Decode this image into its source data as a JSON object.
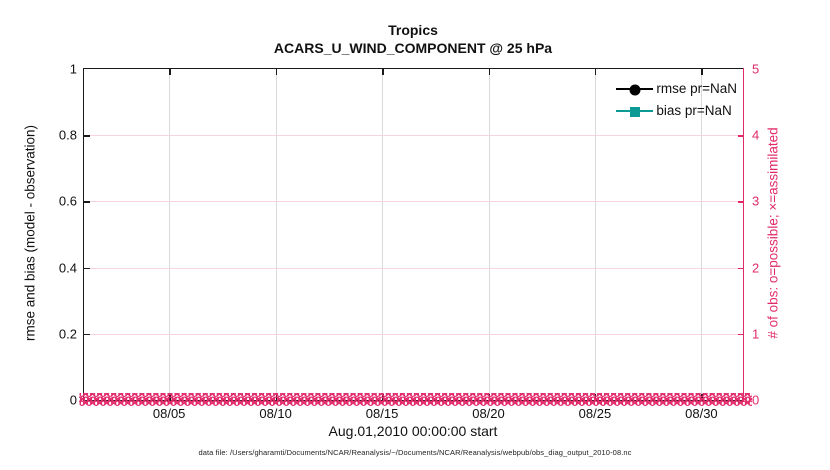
{
  "titles": {
    "line1": "Tropics",
    "line2": "ACARS_U_WIND_COMPONENT @ 25 hPa"
  },
  "axes": {
    "left": {
      "label": "rmse and bias (model - observation)",
      "ticks": [
        "0",
        "0.2",
        "0.4",
        "0.6",
        "0.8",
        "1"
      ],
      "range": [
        0,
        1
      ],
      "color": "#1a1a1a"
    },
    "right": {
      "label": "# of obs: o=possible; ×=assimilated",
      "ticks": [
        "0",
        "1",
        "2",
        "3",
        "4",
        "5"
      ],
      "range": [
        0,
        5
      ],
      "color": "#e22a6a"
    },
    "x": {
      "label": "Aug.01,2010 00:00:00 start",
      "ticks": [
        "08/05",
        "08/10",
        "08/15",
        "08/20",
        "08/25",
        "08/30"
      ],
      "range_days": 31
    }
  },
  "legend": [
    {
      "label": "rmse pr=NaN",
      "color": "#000000",
      "marker": "circle"
    },
    {
      "label": "bias pr=NaN",
      "color": "#0b9a94",
      "marker": "square"
    }
  ],
  "caption": "data file: /Users/gharamti/Documents/NCAR/Reanalysis/~/Documents/NCAR/Reanalysis/webpub/obs_diag_output_2010-08.nc",
  "colors": {
    "accent_pink": "#e22a6a",
    "grid_pink": "#f8d4e0",
    "grid_gray": "#d9d9d9",
    "teal": "#0b9a94",
    "black": "#1a1a1a"
  },
  "chart_data": {
    "type": "line",
    "title": "Tropics",
    "subtitle": "ACARS_U_WIND_COMPONENT @ 25 hPa",
    "xlabel": "Aug.01,2010 00:00:00 start",
    "x_ticks": [
      "08/05",
      "08/10",
      "08/15",
      "08/20",
      "08/25",
      "08/30"
    ],
    "x_range": [
      "08/01 00:00",
      "09/01 00:00"
    ],
    "left_ylabel": "rmse and bias (model - observation)",
    "left_ylim": [
      0,
      1
    ],
    "right_ylabel": "# of obs: o=possible; ×=assimilated",
    "right_ylim": [
      0,
      5
    ],
    "grid": true,
    "legend_position": "top-right",
    "series": [
      {
        "name": "rmse pr=NaN",
        "axis": "left",
        "marker": "circle",
        "color": "#000000",
        "values": "NaN (no curve drawn)"
      },
      {
        "name": "bias pr=NaN",
        "axis": "left",
        "marker": "square",
        "color": "#0b9a94",
        "values": "NaN (no curve drawn)"
      },
      {
        "name": "possible obs (o)",
        "axis": "right",
        "marker": "o",
        "color": "#e22a6a",
        "constant_value": 0
      },
      {
        "name": "assimilated obs (×)",
        "axis": "right",
        "marker": "×",
        "color": "#e22a6a",
        "constant_value": 0
      }
    ],
    "marker_band": {
      "glyphs": "o×",
      "repeat": 110,
      "rows": 3,
      "color": "#e22a6a",
      "at_value": 0
    }
  }
}
